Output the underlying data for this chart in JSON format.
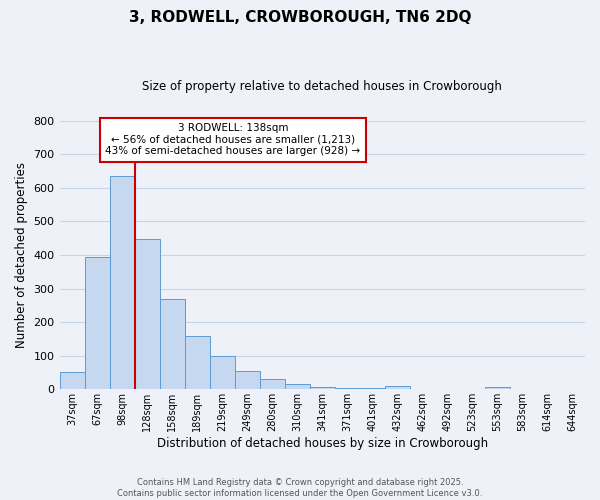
{
  "title": "3, RODWELL, CROWBOROUGH, TN6 2DQ",
  "subtitle": "Size of property relative to detached houses in Crowborough",
  "xlabel": "Distribution of detached houses by size in Crowborough",
  "ylabel": "Number of detached properties",
  "bar_labels": [
    "37sqm",
    "67sqm",
    "98sqm",
    "128sqm",
    "158sqm",
    "189sqm",
    "219sqm",
    "249sqm",
    "280sqm",
    "310sqm",
    "341sqm",
    "371sqm",
    "401sqm",
    "432sqm",
    "462sqm",
    "492sqm",
    "523sqm",
    "553sqm",
    "583sqm",
    "614sqm",
    "644sqm"
  ],
  "bar_values": [
    50,
    393,
    635,
    447,
    270,
    158,
    99,
    54,
    30,
    17,
    7,
    4,
    4,
    11,
    2,
    0,
    0,
    6,
    0,
    0,
    0
  ],
  "bar_color": "#c5d8f0",
  "bar_edge_color": "#5b9bd5",
  "ylim": [
    0,
    800
  ],
  "yticks": [
    0,
    100,
    200,
    300,
    400,
    500,
    600,
    700,
    800
  ],
  "grid_color": "#c8d4e8",
  "background_color": "#eef2f8",
  "annotation_text_line1": "3 RODWELL: 138sqm",
  "annotation_text_line2": "← 56% of detached houses are smaller (1,213)",
  "annotation_text_line3": "43% of semi-detached houses are larger (928) →",
  "annotation_box_color": "#ffffff",
  "annotation_line_color": "#cc0000",
  "footer_line1": "Contains HM Land Registry data © Crown copyright and database right 2025.",
  "footer_line2": "Contains public sector information licensed under the Open Government Licence v3.0."
}
